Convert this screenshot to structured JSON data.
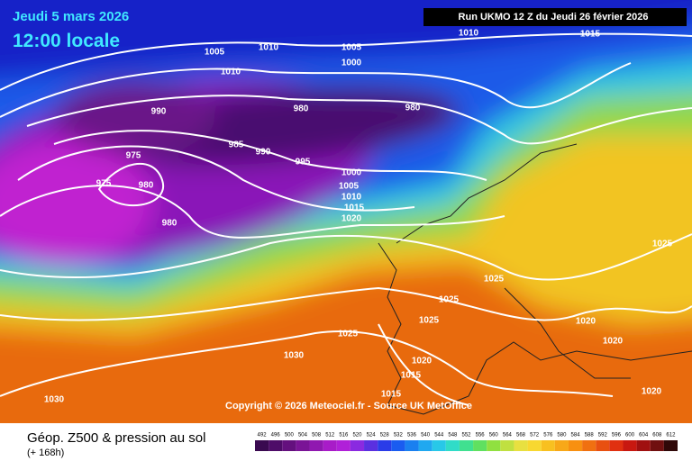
{
  "header": {
    "valid_date": "Jeudi 5 mars 2026",
    "valid_time": "12:00 locale",
    "run": "Run UKMO 12 Z du Jeudi 26 février 2026"
  },
  "copyright": "Copyright © 2026 Meteociel.fr - Source UK MetOffice",
  "footer": {
    "title": "Géop. Z500 & pression au sol",
    "lead": "(+ 168h)"
  },
  "isobar_labels": [
    "1005",
    "1010",
    "1010",
    "1005",
    "1000",
    "1010",
    "1015",
    "990",
    "980",
    "980",
    "975",
    "985",
    "990",
    "995",
    "975",
    "980",
    "980",
    "1000",
    "1005",
    "1010",
    "1015",
    "1020",
    "1025",
    "1025",
    "1025",
    "1025",
    "1025",
    "1020",
    "1020",
    "1030",
    "1020",
    "1015",
    "1015",
    "1030",
    "1020"
  ],
  "colorbar": {
    "ticks": [
      492,
      496,
      500,
      504,
      508,
      512,
      516,
      520,
      524,
      528,
      532,
      536,
      540,
      544,
      548,
      552,
      556,
      560,
      564,
      568,
      572,
      576,
      580,
      584,
      588,
      592,
      596,
      600,
      604,
      608,
      612
    ],
    "colors": [
      "#3a0a50",
      "#4e0c68",
      "#64107e",
      "#7a1496",
      "#9018b0",
      "#a81cc8",
      "#b020d8",
      "#8a2ae0",
      "#5a30e0",
      "#2a3ce8",
      "#1a5cf0",
      "#1a80f0",
      "#20a8f0",
      "#28c8e8",
      "#30dcc8",
      "#40e090",
      "#60e060",
      "#90e040",
      "#c0e040",
      "#e8e040",
      "#f8d830",
      "#f8c020",
      "#f8a818",
      "#f89010",
      "#f07010",
      "#e85010",
      "#e03010",
      "#c81810",
      "#a01010",
      "#701010",
      "#300808"
    ]
  }
}
